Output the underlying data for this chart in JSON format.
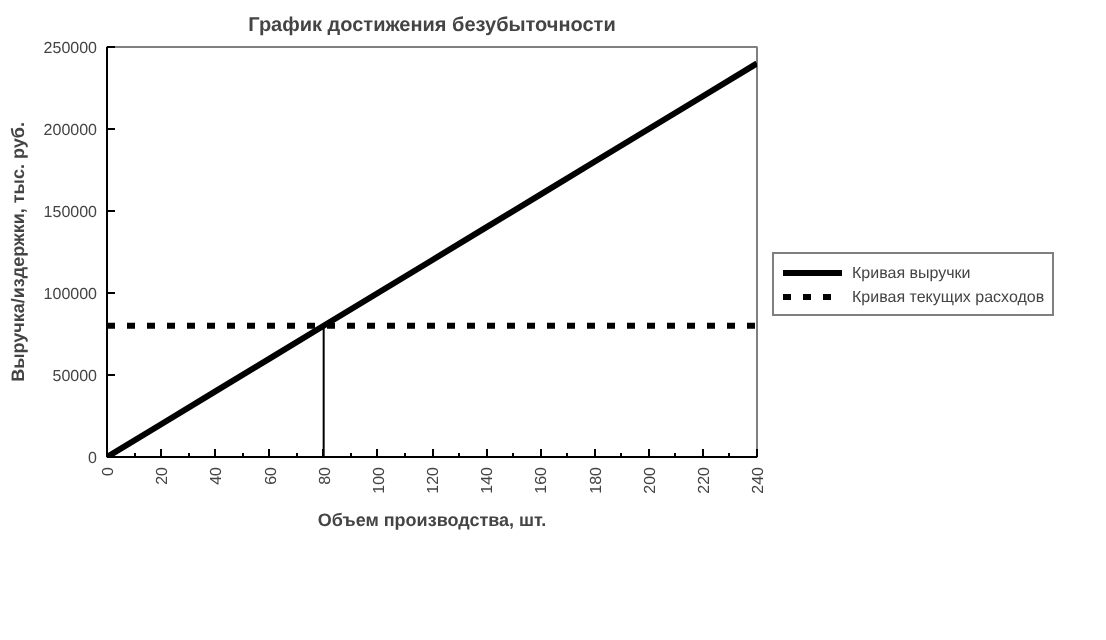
{
  "chart_data": {
    "type": "line",
    "title": "График достижения безубыточности",
    "xlabel": "Объем производства, шт.",
    "ylabel": "Выручка/издержки, тыс. руб.",
    "x": [
      0,
      20,
      40,
      60,
      80,
      100,
      120,
      140,
      160,
      180,
      200,
      220,
      240
    ],
    "series": [
      {
        "name": "Кривая выручки",
        "color": "#000000",
        "line_style": "solid",
        "values": [
          0,
          20000,
          40000,
          60000,
          80000,
          100000,
          120000,
          140000,
          160000,
          180000,
          200000,
          220000,
          240000
        ]
      },
      {
        "name": "Кривая текущих расходов",
        "color": "#000000",
        "line_style": "dotted",
        "values": [
          80000,
          80000,
          80000,
          80000,
          80000,
          80000,
          80000,
          80000,
          80000,
          80000,
          80000,
          80000,
          80000
        ]
      },
      {
        "color": "#000000",
        "line_style": "solid",
        "x": [
          80,
          80
        ],
        "values": [
          0,
          80000
        ]
      }
    ],
    "xlim": [
      0,
      240
    ],
    "xticks": [
      0,
      20,
      40,
      60,
      80,
      100,
      120,
      140,
      160,
      180,
      200,
      220,
      240
    ],
    "ylim": [
      0,
      250000
    ],
    "yticks": [
      0,
      50000,
      100000,
      150000,
      200000,
      250000
    ],
    "grid": false,
    "legend": "right",
    "marker": "none"
  }
}
